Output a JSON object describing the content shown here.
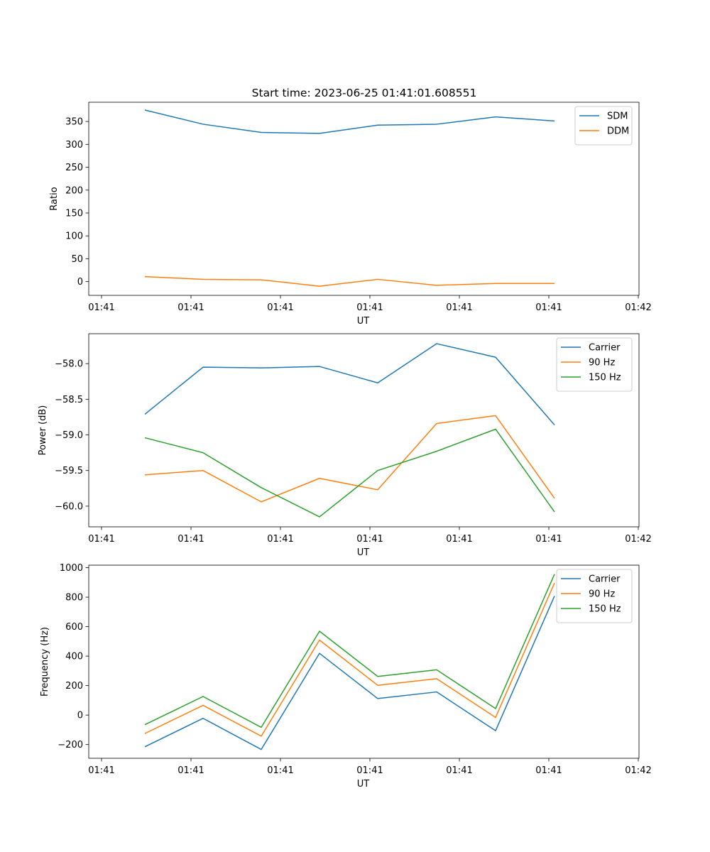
{
  "figure": {
    "title": "Start time: 2023-06-25 01:41:01.608551"
  },
  "chart_data": [
    {
      "type": "line",
      "title": "Start time: 2023-06-25 01:41:01.608551",
      "xlabel": "UT",
      "ylabel": "Ratio",
      "x_tick_labels": [
        "01:41",
        "01:41",
        "01:41",
        "01:41",
        "01:41",
        "01:41",
        "01:42"
      ],
      "y_ticks": [
        0,
        50,
        100,
        150,
        200,
        250,
        300,
        350
      ],
      "ylim": [
        -30,
        392
      ],
      "legend_position": "top-right",
      "grid": false,
      "series": [
        {
          "name": "SDM",
          "color": "#1f77b4",
          "values": [
            375,
            344,
            326,
            324,
            342,
            344,
            360,
            351
          ]
        },
        {
          "name": "DDM",
          "color": "#ff7f0e",
          "values": [
            11,
            5,
            4,
            -10,
            5,
            -8,
            -4,
            -4
          ]
        }
      ]
    },
    {
      "type": "line",
      "xlabel": "UT",
      "ylabel": "Power (dB)",
      "x_tick_labels": [
        "01:41",
        "01:41",
        "01:41",
        "01:41",
        "01:41",
        "01:41",
        "01:42"
      ],
      "y_ticks": [
        -60.0,
        -59.5,
        -59.0,
        -58.5,
        -58.0
      ],
      "y_tick_labels": [
        "−60.0",
        "−59.5",
        "−59.0",
        "−58.5",
        "−58.0"
      ],
      "ylim": [
        -60.29,
        -57.58
      ],
      "legend_position": "top-right",
      "grid": false,
      "series": [
        {
          "name": "Carrier",
          "color": "#1f77b4",
          "values": [
            -58.71,
            -58.05,
            -58.06,
            -58.04,
            -58.27,
            -57.72,
            -57.91,
            -58.86
          ]
        },
        {
          "name": "90 Hz",
          "color": "#ff7f0e",
          "values": [
            -59.56,
            -59.5,
            -59.94,
            -59.61,
            -59.77,
            -58.84,
            -58.73,
            -59.89
          ]
        },
        {
          "name": "150 Hz",
          "color": "#2ca02c",
          "values": [
            -59.04,
            -59.25,
            -59.74,
            -60.15,
            -59.5,
            -59.23,
            -58.92,
            -60.08
          ]
        }
      ]
    },
    {
      "type": "line",
      "xlabel": "UT",
      "ylabel": "Frequency (Hz)",
      "x_tick_labels": [
        "01:41",
        "01:41",
        "01:41",
        "01:41",
        "01:41",
        "01:41",
        "01:42"
      ],
      "y_ticks": [
        -200,
        0,
        200,
        400,
        600,
        800,
        1000
      ],
      "y_tick_labels": [
        "−200",
        "0",
        "200",
        "400",
        "600",
        "800",
        "1000"
      ],
      "ylim": [
        -293,
        1017
      ],
      "legend_position": "top-right",
      "grid": false,
      "series": [
        {
          "name": "Carrier",
          "color": "#1f77b4",
          "values": [
            -215,
            -22,
            -233,
            419,
            112,
            157,
            -106,
            808
          ]
        },
        {
          "name": "90 Hz",
          "color": "#ff7f0e",
          "values": [
            -125,
            66,
            -143,
            509,
            202,
            247,
            -16,
            896
          ]
        },
        {
          "name": "150 Hz",
          "color": "#2ca02c",
          "values": [
            -65,
            126,
            -83,
            569,
            262,
            307,
            44,
            956
          ]
        }
      ]
    }
  ]
}
